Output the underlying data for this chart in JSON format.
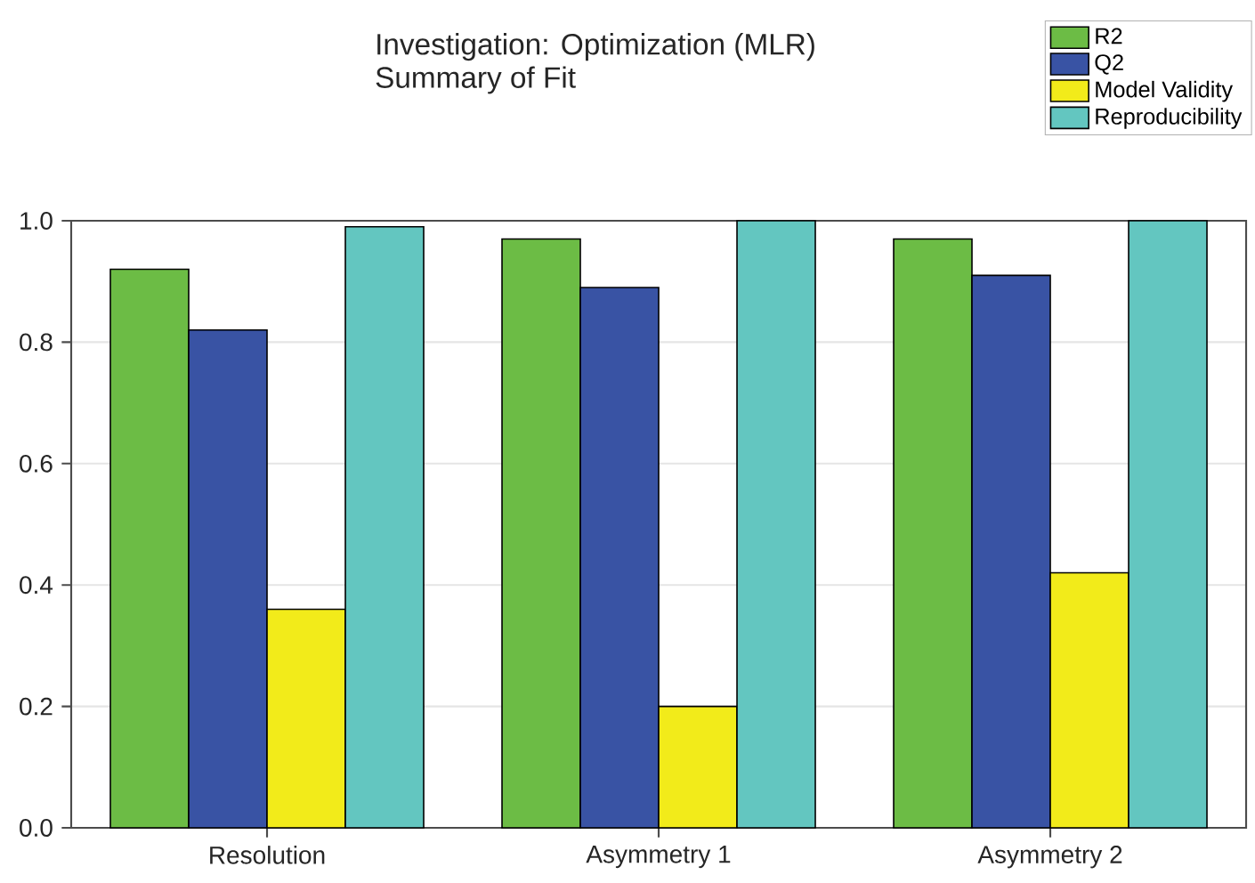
{
  "chart_data": {
    "type": "bar",
    "title": "Investigation: Optimization (MLR)",
    "subtitle": "Summary of Fit",
    "categories": [
      "Resolution",
      "Asymmetry 1",
      "Asymmetry 2"
    ],
    "series": [
      {
        "name": "R2",
        "color": "#6cbc45",
        "values": [
          0.92,
          0.97,
          0.97
        ]
      },
      {
        "name": "Q2",
        "color": "#3953a4",
        "values": [
          0.82,
          0.89,
          0.91
        ]
      },
      {
        "name": "Model Validity",
        "color": "#f2eb1a",
        "values": [
          0.36,
          0.2,
          0.42
        ]
      },
      {
        "name": "Reproducibility",
        "color": "#63c6c0",
        "values": [
          0.99,
          1.0,
          1.0
        ]
      }
    ],
    "ylim": [
      0,
      1
    ],
    "yticks": [
      {
        "value": 0,
        "label": "0.0"
      },
      {
        "value": 0.2,
        "label": "0.2"
      },
      {
        "value": 0.4,
        "label": "0.4"
      },
      {
        "value": 0.6,
        "label": "0.6"
      },
      {
        "value": 0.8,
        "label": "0.8"
      },
      {
        "value": 1,
        "label": "1.0"
      }
    ],
    "grid": "y",
    "legend": "top right"
  }
}
